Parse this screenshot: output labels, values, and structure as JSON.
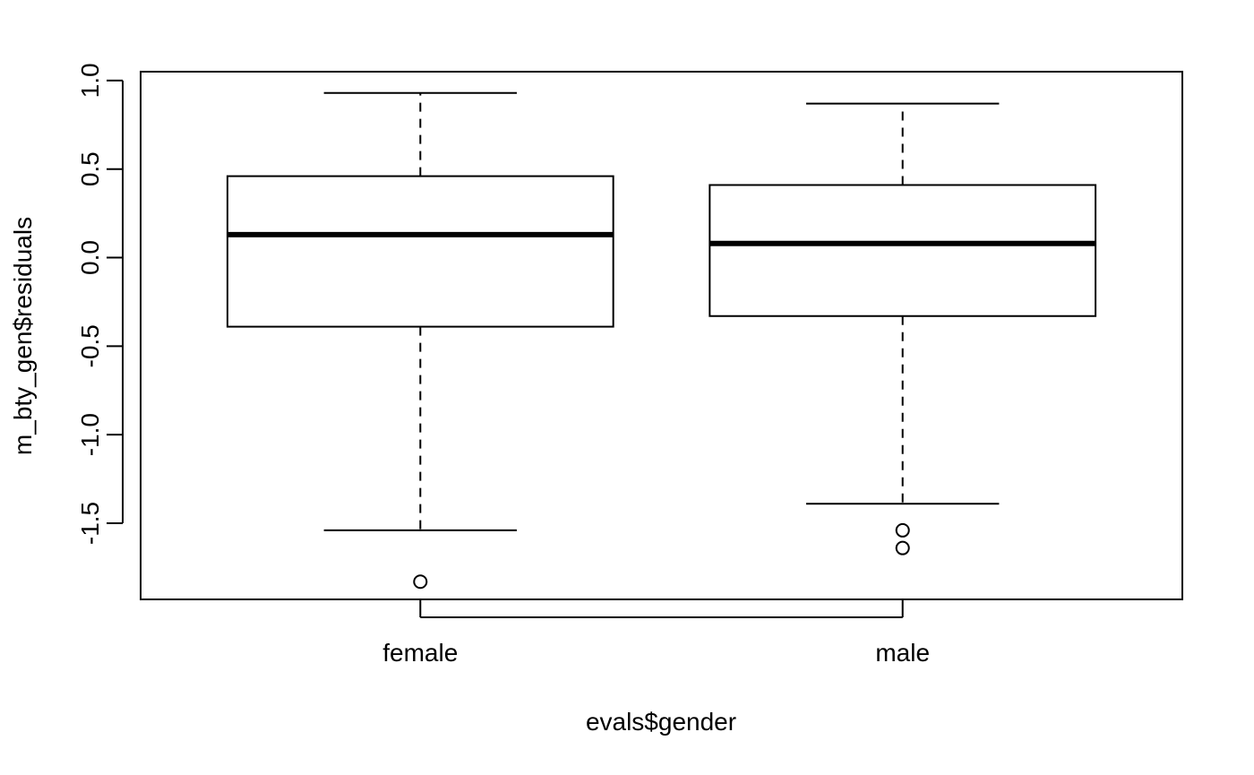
{
  "chart_data": {
    "type": "boxplot",
    "xlabel": "evals$gender",
    "ylabel": "m_bty_gen$residuals",
    "categories": [
      "female",
      "male"
    ],
    "ylim": [
      -1.93,
      1.05
    ],
    "yticks": [
      "-1.5",
      "-1.0",
      "-0.5",
      "0.0",
      "0.5",
      "1.0"
    ],
    "grid": false,
    "boxes": [
      {
        "name": "female",
        "whisker_low": -1.54,
        "q1": -0.39,
        "median": 0.13,
        "q3": 0.46,
        "whisker_high": 0.93,
        "outliers": [
          -1.83
        ]
      },
      {
        "name": "male",
        "whisker_low": -1.39,
        "q1": -0.33,
        "median": 0.08,
        "q3": 0.41,
        "whisker_high": 0.87,
        "outliers": [
          -1.54,
          -1.64
        ]
      }
    ]
  }
}
